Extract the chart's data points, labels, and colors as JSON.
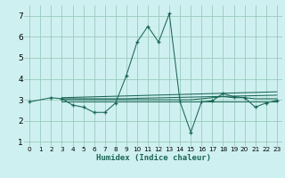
{
  "xlabel": "Humidex (Indice chaleur)",
  "bg_color": "#cff0f0",
  "grid_color": "#99ccbb",
  "line_color": "#1a6655",
  "xlim": [
    -0.5,
    23.5
  ],
  "ylim": [
    0.8,
    7.5
  ],
  "yticks": [
    1,
    2,
    3,
    4,
    5,
    6,
    7
  ],
  "xticks": [
    0,
    1,
    2,
    3,
    4,
    5,
    6,
    7,
    8,
    9,
    10,
    11,
    12,
    13,
    14,
    15,
    16,
    17,
    18,
    19,
    20,
    21,
    22,
    23
  ],
  "series_main": {
    "x": [
      0,
      2,
      3,
      4,
      5,
      6,
      7,
      8,
      9,
      10,
      11,
      12,
      13,
      14,
      15,
      16,
      17,
      18,
      19,
      20,
      21,
      22,
      23
    ],
    "y": [
      2.9,
      3.1,
      3.05,
      2.75,
      2.65,
      2.4,
      2.4,
      2.85,
      4.15,
      5.75,
      6.5,
      5.75,
      7.1,
      2.9,
      1.45,
      2.9,
      2.95,
      3.3,
      3.15,
      3.1,
      2.65,
      2.85,
      2.97
    ]
  },
  "series_flat": [
    {
      "x": [
        3,
        23
      ],
      "y": [
        2.9,
        2.9
      ]
    },
    {
      "x": [
        3,
        9,
        10,
        11,
        12,
        13,
        14,
        15,
        16,
        17,
        18,
        19,
        20,
        21,
        22,
        23
      ],
      "y": [
        3.0,
        3.0,
        3.0,
        3.0,
        3.0,
        3.0,
        3.0,
        3.0,
        3.05,
        3.1,
        3.15,
        3.1,
        3.1,
        3.05,
        3.05,
        3.05
      ]
    },
    {
      "x": [
        3,
        23
      ],
      "y": [
        3.1,
        3.38
      ]
    },
    {
      "x": [
        3,
        9,
        10,
        23
      ],
      "y": [
        3.05,
        3.05,
        3.07,
        3.22
      ]
    }
  ]
}
